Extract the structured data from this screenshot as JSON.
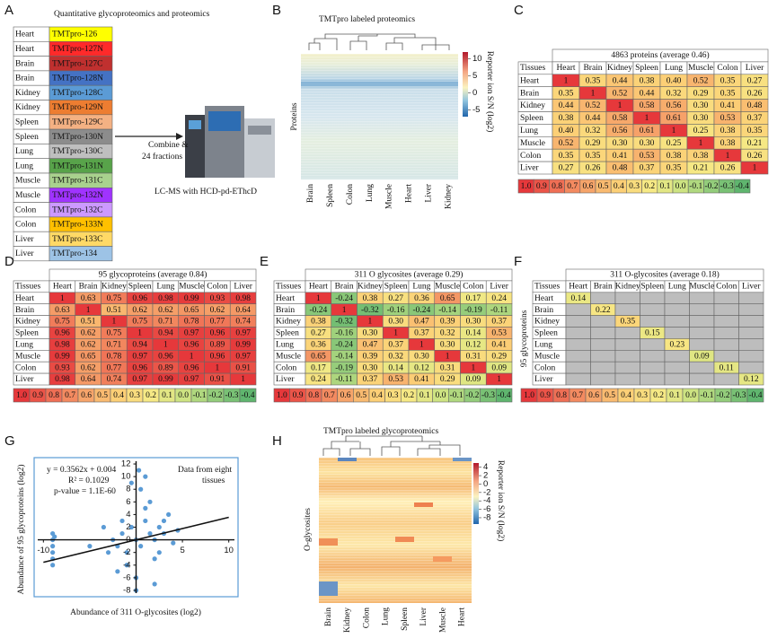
{
  "panel_labels": [
    "A",
    "B",
    "C",
    "D",
    "E",
    "F",
    "G",
    "H"
  ],
  "panel_a": {
    "title": "Quantitative glycoproteomics and proteomics",
    "rows": [
      {
        "tissue": "Heart",
        "label": "TMTpro-126",
        "color": "#ffff00"
      },
      {
        "tissue": "Heart",
        "label": "TMTpro-127N",
        "color": "#ff2a2a"
      },
      {
        "tissue": "Brain",
        "label": "TMTpro-127C",
        "color": "#c0302f"
      },
      {
        "tissue": "Brain",
        "label": "TMTpro-128N",
        "color": "#4472c4"
      },
      {
        "tissue": "Kidney",
        "label": "TMTpro-128C",
        "color": "#5b9bd5"
      },
      {
        "tissue": "Kidney",
        "label": "TMTpro-129N",
        "color": "#ed7d31"
      },
      {
        "tissue": "Spleen",
        "label": "TMTpro-129C",
        "color": "#f4b183"
      },
      {
        "tissue": "Spleen",
        "label": "TMTpro-130N",
        "color": "#8c8c8c"
      },
      {
        "tissue": "Lung",
        "label": "TMTpro-130C",
        "color": "#bfbfbf"
      },
      {
        "tissue": "Lung",
        "label": "TMTpro-131N",
        "color": "#58a34a"
      },
      {
        "tissue": "Muscle",
        "label": "TMTpro-131C",
        "color": "#a9d18e"
      },
      {
        "tissue": "Muscle",
        "label": "TMTpro-132N",
        "color": "#a033ff"
      },
      {
        "tissue": "Colon",
        "label": "TMTpro-132C",
        "color": "#cc99ff"
      },
      {
        "tissue": "Colon",
        "label": "TMTpro-133N",
        "color": "#ffc000"
      },
      {
        "tissue": "Liver",
        "label": "TMTpro-133C",
        "color": "#ffd966"
      },
      {
        "tissue": "Liver",
        "label": "TMTpro-134",
        "color": "#9dc3e6"
      }
    ],
    "combine_text": [
      "Combine &",
      "24 fractions"
    ],
    "instrument_caption": "LC-MS with HCD-pd-EThcD"
  },
  "panel_b": {
    "title": "TMTpro labeled proteomics",
    "y_label": "Proteins",
    "columns": [
      "Brain",
      "Spleen",
      "Colon",
      "Lung",
      "Muscle",
      "Heart",
      "Liver",
      "Kidney"
    ],
    "colorbar": {
      "label": "Reporter ion S/N (log2)",
      "lim": [
        -7,
        12
      ],
      "ticks": [
        -5,
        0,
        5,
        10
      ]
    }
  },
  "color_scale": [
    "1.0",
    "0.9",
    "0.8",
    "0.7",
    "0.6",
    "0.5",
    "0.4",
    "0.3",
    "0.2",
    "0.1",
    "0.0",
    "-0.1",
    "-0.2",
    "-0.3",
    "-0.4"
  ],
  "panel_c": {
    "title": "4863 proteins (average 0.46)",
    "header": [
      "Tissues",
      "Heart",
      "Brain",
      "Kidney",
      "Spleen",
      "Lung",
      "Muscle",
      "Colon",
      "Liver"
    ],
    "rows": [
      [
        "Heart",
        "1",
        "0.35",
        "0.44",
        "0.38",
        "0.40",
        "0.52",
        "0.35",
        "0.27"
      ],
      [
        "Brain",
        "0.35",
        "1",
        "0.52",
        "0.44",
        "0.32",
        "0.29",
        "0.35",
        "0.26"
      ],
      [
        "Kidney",
        "0.44",
        "0.52",
        "1",
        "0.58",
        "0.56",
        "0.30",
        "0.41",
        "0.48"
      ],
      [
        "Spleen",
        "0.38",
        "0.44",
        "0.58",
        "1",
        "0.61",
        "0.30",
        "0.53",
        "0.37"
      ],
      [
        "Lung",
        "0.40",
        "0.32",
        "0.56",
        "0.61",
        "1",
        "0.25",
        "0.38",
        "0.35"
      ],
      [
        "Muscle",
        "0.52",
        "0.29",
        "0.30",
        "0.30",
        "0.25",
        "1",
        "0.38",
        "0.21"
      ],
      [
        "Colon",
        "0.35",
        "0.35",
        "0.41",
        "0.53",
        "0.38",
        "0.38",
        "1",
        "0.26"
      ],
      [
        "Liver",
        "0.27",
        "0.26",
        "0.48",
        "0.37",
        "0.35",
        "0.21",
        "0.26",
        "1"
      ]
    ]
  },
  "panel_d": {
    "title": "95 glycoproteins (average 0.84)",
    "header": [
      "Tissues",
      "Heart",
      "Brain",
      "Kidney",
      "Spleen",
      "Lung",
      "Muscle",
      "Colon",
      "Liver"
    ],
    "rows": [
      [
        "Heart",
        "1",
        "0.63",
        "0.75",
        "0.96",
        "0.98",
        "0.99",
        "0.93",
        "0.98"
      ],
      [
        "Brain",
        "0.63",
        "1",
        "0.51",
        "0.62",
        "0.62",
        "0.65",
        "0.62",
        "0.64"
      ],
      [
        "Kidney",
        "0.75",
        "0.51",
        "1",
        "0.75",
        "0.71",
        "0.78",
        "0.77",
        "0.74"
      ],
      [
        "Spleen",
        "0.96",
        "0.62",
        "0.75",
        "1",
        "0.94",
        "0.97",
        "0.96",
        "0.97"
      ],
      [
        "Lung",
        "0.98",
        "0.62",
        "0.71",
        "0.94",
        "1",
        "0.96",
        "0.89",
        "0.99"
      ],
      [
        "Muscle",
        "0.99",
        "0.65",
        "0.78",
        "0.97",
        "0.96",
        "1",
        "0.96",
        "0.97"
      ],
      [
        "Colon",
        "0.93",
        "0.62",
        "0.77",
        "0.96",
        "0.89",
        "0.96",
        "1",
        "0.91"
      ],
      [
        "Liver",
        "0.98",
        "0.64",
        "0.74",
        "0.97",
        "0.99",
        "0.97",
        "0.91",
        "1"
      ]
    ]
  },
  "panel_e": {
    "title": "311 O glycosites (average 0.29)",
    "header": [
      "Tissues",
      "Heart",
      "Brain",
      "Kidney",
      "Spleen",
      "Lung",
      "Muscle",
      "Colon",
      "Liver"
    ],
    "rows": [
      [
        "Heart",
        "1",
        "-0.24",
        "0.38",
        "0.27",
        "0.36",
        "0.65",
        "0.17",
        "0.24"
      ],
      [
        "Brain",
        "-0.24",
        "1",
        "-0.32",
        "-0.16",
        "-0.24",
        "-0.14",
        "-0.19",
        "-0.11"
      ],
      [
        "Kidney",
        "0.38",
        "-0.32",
        "1",
        "0.30",
        "0.47",
        "0.39",
        "0.30",
        "0.37"
      ],
      [
        "Spleen",
        "0.27",
        "-0.16",
        "0.30",
        "1",
        "0.37",
        "0.32",
        "0.14",
        "0.53"
      ],
      [
        "Lung",
        "0.36",
        "-0.24",
        "0.47",
        "0.37",
        "1",
        "0.30",
        "0.12",
        "0.41"
      ],
      [
        "Muscle",
        "0.65",
        "-0.14",
        "0.39",
        "0.32",
        "0.30",
        "1",
        "0.31",
        "0.29"
      ],
      [
        "Colon",
        "0.17",
        "-0.19",
        "0.30",
        "0.14",
        "0.12",
        "0.31",
        "1",
        "0.09"
      ],
      [
        "Liver",
        "0.24",
        "-0.11",
        "0.37",
        "0.53",
        "0.41",
        "0.29",
        "0.09",
        "1"
      ]
    ]
  },
  "panel_f": {
    "title": "311 O-glycosites (average 0.18)",
    "row_axis_label": "95 glycoproteins",
    "header": [
      "Tissues",
      "Heart",
      "Brain",
      "Kidney",
      "Spleen",
      "Lung",
      "Muscle",
      "Colon",
      "Liver"
    ],
    "row_names": [
      "Heart",
      "Brain",
      "Kidney",
      "Spleen",
      "Lung",
      "Muscle",
      "Colon",
      "Liver"
    ],
    "diagonal": [
      "0.14",
      "0.22",
      "0.35",
      "0.15",
      "0.23",
      "0.09",
      "0.11",
      "0.12"
    ]
  },
  "panel_g": {
    "type": "scatter",
    "equation": "y = 0.3562x + 0.004",
    "r_squared": "R² = 0.1029",
    "p_value": "p-value = 1.1E-60",
    "note": [
      "Data from eight",
      "tissues"
    ],
    "x_label": "Abundance of 311 O-glycosites (log2)",
    "y_label": "Abundance of 95 glycoproteins (log2)",
    "color": "#5b9bd5",
    "x": [
      -9,
      -9,
      -9,
      -9,
      -9,
      -9,
      -8.8,
      -5,
      -3,
      -2.5,
      -2,
      -1.5,
      -1,
      -0.5,
      0,
      0.5,
      1,
      1.5,
      2,
      2.5,
      3,
      3.5,
      4,
      -1,
      0,
      1,
      2,
      -2,
      0.5,
      1.5,
      2.5,
      -0.5,
      3,
      4.5,
      0,
      -1.5,
      1,
      2,
      0.3,
      -3.5
    ],
    "y": [
      1,
      0,
      -1,
      -2,
      -3,
      -4,
      0.5,
      -1,
      -2,
      0,
      -1,
      1,
      -2,
      2,
      0,
      -1,
      3,
      1,
      0,
      2,
      1,
      4,
      -0.5,
      -4,
      -6,
      5,
      -3,
      -5,
      8,
      6,
      -2,
      9,
      3,
      1.5,
      -8,
      3,
      10,
      -7,
      11,
      2
    ],
    "trendline": {
      "slope": 0.3562,
      "intercept": 0.004
    },
    "xlim": [
      -11,
      11
    ],
    "ylim": [
      -9,
      13
    ],
    "xticks": [
      -10,
      5,
      10
    ],
    "yticks": [
      -8,
      -6,
      -4,
      -2,
      0,
      2,
      4,
      6,
      8,
      10,
      12
    ]
  },
  "panel_h": {
    "title": "TMTpro labeled glycoproteomics",
    "y_label": "O-glycosites",
    "columns": [
      "Brain",
      "Kidney",
      "Colon",
      "Lung",
      "Spleen",
      "Liver",
      "Muscle",
      "Heart"
    ],
    "colorbar": {
      "label": "Reporter ion S/N (log2)",
      "lim": [
        -9.5,
        5
      ],
      "ticks": [
        4,
        2,
        0,
        -2,
        -4,
        -6,
        -8
      ]
    }
  }
}
